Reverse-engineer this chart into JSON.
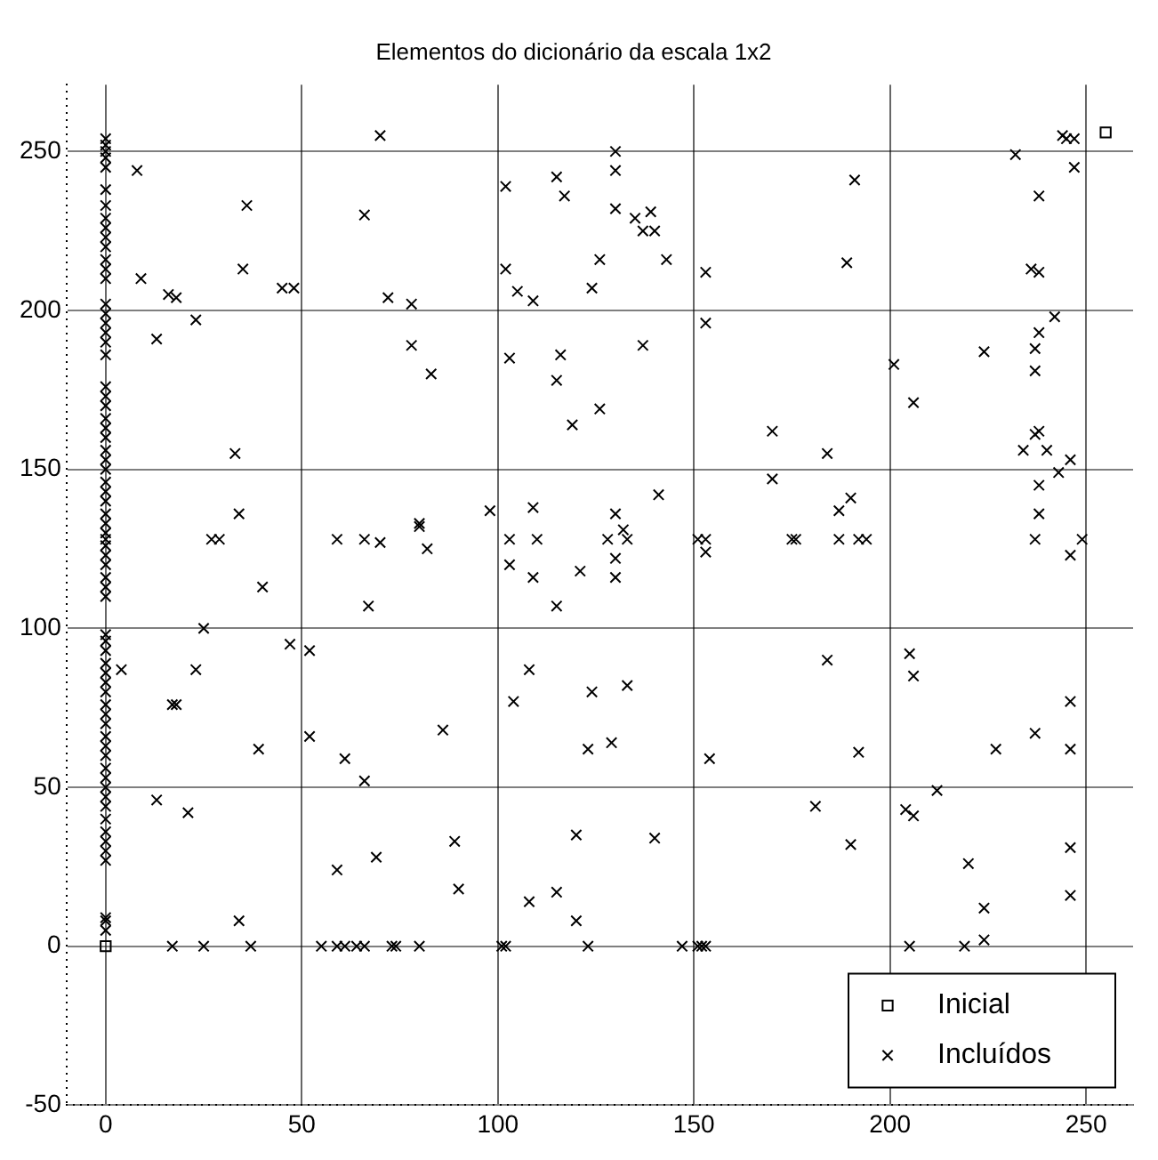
{
  "chart_data": {
    "type": "scatter",
    "title": "Elementos do dicionário da escala 1x2",
    "xlim": [
      -10,
      262
    ],
    "ylim": [
      -50,
      271
    ],
    "xticks": [
      0,
      50,
      100,
      150,
      200,
      250
    ],
    "yticks": [
      -50,
      0,
      50,
      100,
      150,
      200,
      250
    ],
    "grid": true,
    "legend": "bottom right",
    "series": [
      {
        "name": "Inicial",
        "color": "#000000",
        "marker": "square",
        "x": [
          0,
          255
        ],
        "values": [
          0,
          256
        ]
      },
      {
        "name": "Incluídos",
        "color": "#000000",
        "marker": "cross",
        "x": [
          0,
          0,
          0,
          0,
          0,
          0,
          0,
          0,
          0,
          0,
          0,
          0,
          0,
          0,
          0,
          0,
          0,
          0,
          0,
          0,
          0,
          0,
          0,
          0,
          0,
          0,
          0,
          0,
          0,
          0,
          0,
          0,
          0,
          0,
          0,
          0,
          0,
          0,
          0,
          0,
          0,
          0,
          0,
          0,
          0,
          0,
          0,
          0,
          0,
          0,
          0,
          0,
          0,
          0,
          0,
          0,
          0,
          0,
          0,
          0,
          0,
          0,
          0,
          0,
          0,
          0,
          0,
          0,
          70,
          8,
          36,
          66,
          35,
          9,
          45,
          48,
          16,
          18,
          72,
          78,
          23,
          13,
          78,
          83,
          33,
          34,
          80,
          130,
          130,
          115,
          102,
          117,
          130,
          135,
          139,
          137,
          140,
          126,
          143,
          102,
          153,
          105,
          109,
          124,
          153,
          137,
          103,
          116,
          115,
          126,
          119,
          170,
          170,
          141,
          98,
          109,
          130,
          244,
          245,
          247,
          232,
          247,
          191,
          238,
          189,
          236,
          238,
          242,
          238,
          237,
          224,
          237,
          201,
          206,
          238,
          237,
          234,
          240,
          246,
          243,
          184,
          238,
          190,
          187,
          238,
          27,
          29,
          59,
          66,
          70,
          80,
          82,
          40,
          67,
          25,
          47,
          52,
          4,
          23,
          17,
          18,
          52,
          39,
          61,
          66,
          13,
          21,
          69,
          59,
          34,
          17,
          25,
          37,
          55,
          59,
          61,
          64,
          66,
          73,
          74,
          80,
          103,
          110,
          128,
          132,
          133,
          151,
          153,
          153,
          103,
          109,
          121,
          130,
          130,
          115,
          108,
          104,
          124,
          133,
          86,
          123,
          129,
          154,
          89,
          90,
          120,
          140,
          108,
          115,
          120,
          101,
          102,
          123,
          147,
          151,
          152,
          153,
          175,
          176,
          187,
          192,
          194,
          237,
          249,
          246,
          184,
          205,
          206,
          246,
          237,
          227,
          246,
          192,
          181,
          212,
          204,
          206,
          190,
          246,
          220,
          246,
          224,
          224,
          205,
          219
        ],
        "values": [
          5,
          8,
          9,
          27,
          30,
          33,
          36,
          40,
          44,
          47,
          50,
          53,
          56,
          60,
          63,
          66,
          70,
          73,
          76,
          80,
          83,
          86,
          89,
          93,
          96,
          98,
          110,
          113,
          116,
          120,
          123,
          126,
          128,
          130,
          133,
          136,
          140,
          143,
          146,
          150,
          153,
          156,
          160,
          163,
          166,
          170,
          173,
          176,
          186,
          190,
          193,
          196,
          199,
          202,
          210,
          213,
          216,
          220,
          223,
          226,
          229,
          233,
          238,
          245,
          248,
          250,
          252,
          254,
          255,
          244,
          233,
          230,
          213,
          210,
          207,
          207,
          205,
          204,
          204,
          202,
          197,
          191,
          189,
          180,
          155,
          136,
          133,
          250,
          244,
          242,
          239,
          236,
          232,
          229,
          231,
          225,
          225,
          216,
          216,
          213,
          212,
          206,
          203,
          207,
          196,
          189,
          185,
          186,
          178,
          169,
          164,
          162,
          147,
          142,
          137,
          138,
          136,
          255,
          254,
          254,
          249,
          245,
          241,
          236,
          215,
          213,
          212,
          198,
          193,
          188,
          187,
          181,
          183,
          171,
          162,
          161,
          156,
          156,
          153,
          149,
          155,
          145,
          141,
          137,
          136,
          128,
          128,
          128,
          128,
          127,
          132,
          125,
          113,
          107,
          100,
          95,
          93,
          87,
          87,
          76,
          76,
          66,
          62,
          59,
          52,
          46,
          42,
          28,
          24,
          8,
          0,
          0,
          0,
          0,
          0,
          0,
          0,
          0,
          0,
          0,
          0,
          128,
          128,
          128,
          131,
          128,
          128,
          128,
          124,
          120,
          116,
          118,
          122,
          116,
          107,
          87,
          77,
          80,
          82,
          68,
          62,
          64,
          59,
          33,
          18,
          35,
          34,
          14,
          17,
          8,
          0,
          0,
          0,
          0,
          0,
          0,
          0,
          128,
          128,
          128,
          128,
          128,
          128,
          128,
          123,
          90,
          92,
          85,
          77,
          67,
          62,
          62,
          61,
          44,
          49,
          43,
          41,
          32,
          31,
          26,
          16,
          12,
          2,
          0,
          0
        ]
      }
    ]
  }
}
